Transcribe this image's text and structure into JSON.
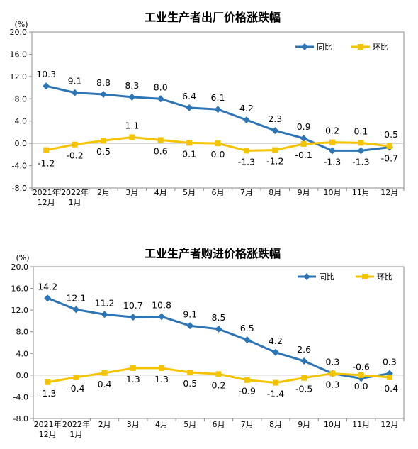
{
  "chart_data": [
    {
      "type": "line",
      "title": "工业生产者出厂价格涨跌幅",
      "unit": "(%)",
      "ylim": [
        -8.0,
        20.0
      ],
      "yticks": [
        "20.0",
        "16.0",
        "12.0",
        "8.0",
        "4.0",
        "0.0",
        "-4.0",
        "-8.0"
      ],
      "categories": [
        [
          "2021年",
          "12月"
        ],
        [
          "2022年",
          "1月"
        ],
        [
          "2月"
        ],
        [
          "3月"
        ],
        [
          "4月"
        ],
        [
          "5月"
        ],
        [
          "6月"
        ],
        [
          "7月"
        ],
        [
          "8月"
        ],
        [
          "9月"
        ],
        [
          "10月"
        ],
        [
          "11月"
        ],
        [
          "12月"
        ]
      ],
      "legend_position": "top-right",
      "series": [
        {
          "name": "同比",
          "color": "#2E75B6",
          "values": [
            10.3,
            9.1,
            8.8,
            8.3,
            8.0,
            6.4,
            6.1,
            4.2,
            2.3,
            0.9,
            -1.3,
            -1.3,
            -0.7
          ],
          "labels": [
            "10.3",
            "9.1",
            "8.8",
            "8.3",
            "8.0",
            "6.4",
            "6.1",
            "4.2",
            "2.3",
            "0.9",
            "-1.3",
            "-1.3",
            "-0.7"
          ]
        },
        {
          "name": "环比",
          "color": "#F5C400",
          "values": [
            -1.2,
            -0.2,
            0.5,
            1.1,
            0.6,
            0.1,
            0.0,
            -1.3,
            -1.2,
            -0.1,
            0.2,
            0.1,
            -0.5
          ],
          "labels": [
            "-1.2",
            "-0.2",
            "0.5",
            "1.1",
            "0.6",
            "0.1",
            "0.0",
            "-1.3",
            "-1.2",
            "-0.1",
            "0.2",
            "0.1",
            "-0.5"
          ]
        }
      ]
    },
    {
      "type": "line",
      "title": "工业生产者购进价格涨跌幅",
      "unit": "(%)",
      "ylim": [
        -8.0,
        20.0
      ],
      "yticks": [
        "20.0",
        "16.0",
        "12.0",
        "8.0",
        "4.0",
        "0.0",
        "-4.0",
        "-8.0"
      ],
      "categories": [
        [
          "2021年",
          "12月"
        ],
        [
          "2022年",
          "1月"
        ],
        [
          "2月"
        ],
        [
          "3月"
        ],
        [
          "4月"
        ],
        [
          "5月"
        ],
        [
          "6月"
        ],
        [
          "7月"
        ],
        [
          "8月"
        ],
        [
          "9月"
        ],
        [
          "10月"
        ],
        [
          "11月"
        ],
        [
          "12月"
        ]
      ],
      "legend_position": "top-right",
      "series": [
        {
          "name": "同比",
          "color": "#2E75B6",
          "values": [
            14.2,
            12.1,
            11.2,
            10.7,
            10.8,
            9.1,
            8.5,
            6.5,
            4.2,
            2.6,
            0.3,
            -0.6,
            0.3
          ],
          "labels": [
            "14.2",
            "12.1",
            "11.2",
            "10.7",
            "10.8",
            "9.1",
            "8.5",
            "6.5",
            "4.2",
            "2.6",
            "0.3",
            "-0.6",
            "0.3"
          ]
        },
        {
          "name": "环比",
          "color": "#F5C400",
          "values": [
            -1.3,
            -0.4,
            0.4,
            1.3,
            1.3,
            0.5,
            0.2,
            -0.9,
            -1.4,
            -0.5,
            0.3,
            0.0,
            -0.4
          ],
          "labels": [
            "-1.3",
            "-0.4",
            "0.4",
            "1.3",
            "1.3",
            "0.5",
            "0.2",
            "-0.9",
            "-1.4",
            "-0.5",
            "0.3",
            "0.0",
            "-0.4"
          ]
        }
      ]
    }
  ]
}
